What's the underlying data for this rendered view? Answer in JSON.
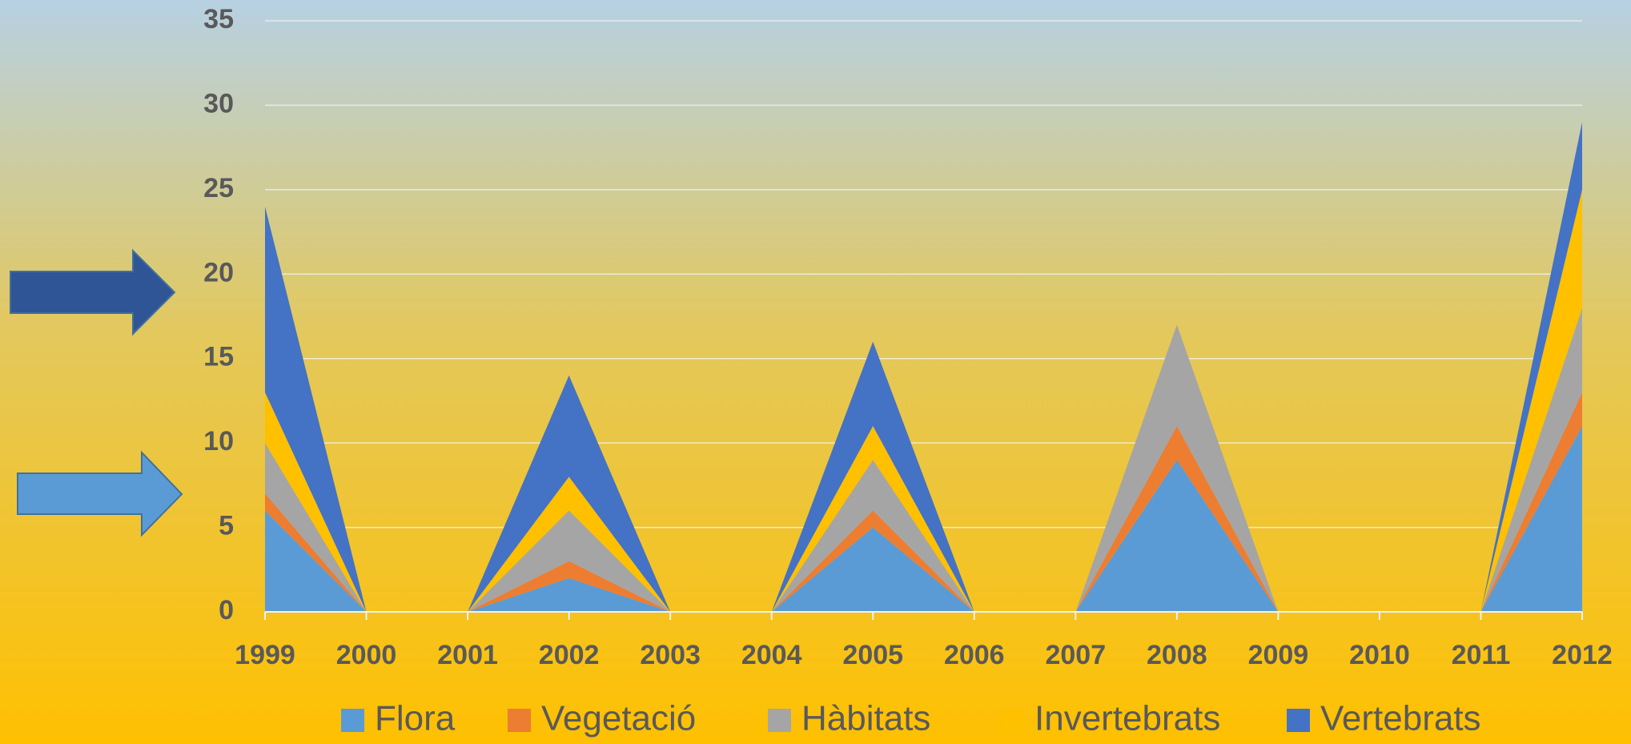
{
  "chart_data": {
    "type": "stacked-area",
    "categories": [
      "1999",
      "2000",
      "2001",
      "2002",
      "2003",
      "2004",
      "2005",
      "2006",
      "2007",
      "2008",
      "2009",
      "2010",
      "2011",
      "2012"
    ],
    "series": [
      {
        "name": "Flora",
        "color": "#5b9bd5",
        "values": [
          6,
          0,
          0,
          2,
          0,
          0,
          5,
          0,
          0,
          9,
          0,
          0,
          0,
          11
        ]
      },
      {
        "name": "Vegetació",
        "color": "#ed7d31",
        "values": [
          1,
          0,
          0,
          1,
          0,
          0,
          1,
          0,
          0,
          2,
          0,
          0,
          0,
          2
        ]
      },
      {
        "name": "Hàbitats",
        "color": "#a5a5a5",
        "values": [
          3,
          0,
          0,
          3,
          0,
          0,
          3,
          0,
          0,
          6,
          0,
          0,
          0,
          5
        ]
      },
      {
        "name": "Invertebrats",
        "color": "#ffc000",
        "values": [
          3,
          0,
          0,
          2,
          0,
          0,
          2,
          0,
          0,
          0,
          0,
          0,
          0,
          7
        ]
      },
      {
        "name": "Vertebrats",
        "color": "#4472c4",
        "values": [
          11,
          0,
          0,
          6,
          0,
          0,
          5,
          0,
          0,
          0,
          0,
          0,
          0,
          4
        ]
      }
    ],
    "ylim": [
      0,
      35
    ],
    "yticks": [
      0,
      5,
      10,
      15,
      20,
      25,
      30,
      35
    ],
    "grid": true,
    "legend": "bottom"
  }
}
